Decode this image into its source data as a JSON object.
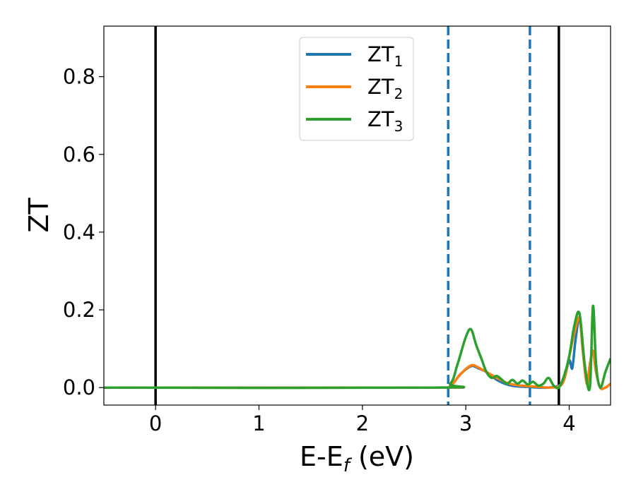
{
  "chart_data": {
    "type": "line",
    "xlabel": "E-E",
    "xlabel_sub": "f",
    "xlabel_unit": " (eV)",
    "ylabel": "ZT",
    "xlim": [
      -0.5,
      4.4
    ],
    "ylim": [
      -0.045,
      0.93
    ],
    "xticks": [
      0,
      1,
      2,
      3,
      4
    ],
    "yticks": [
      0.0,
      0.2,
      0.4,
      0.6,
      0.8
    ],
    "xtick_labels": [
      "0",
      "1",
      "2",
      "3",
      "4"
    ],
    "ytick_labels": [
      "0.0",
      "0.2",
      "0.4",
      "0.6",
      "0.8"
    ],
    "grid": false,
    "legend_position": "top-center",
    "vertical_lines": [
      {
        "x": 0.0,
        "style": "solid",
        "color": "#000000"
      },
      {
        "x": 2.83,
        "style": "dashed",
        "color": "#1f77b4"
      },
      {
        "x": 3.62,
        "style": "dashed",
        "color": "#1f77b4"
      },
      {
        "x": 3.9,
        "style": "solid",
        "color": "#000000"
      }
    ],
    "series": [
      {
        "name": "ZT",
        "name_sub": "1",
        "color": "#1f77b4",
        "x": [
          -0.5,
          2.7,
          2.85,
          2.95,
          3.05,
          3.12,
          3.2,
          3.3,
          3.4,
          3.5,
          3.6,
          3.7,
          3.8,
          3.9,
          3.95,
          4.0,
          4.03,
          4.06,
          4.1,
          4.13,
          4.17,
          4.2,
          4.23,
          4.26,
          4.3,
          4.35,
          4.4
        ],
        "y": [
          0.0,
          0.0,
          0.005,
          0.035,
          0.055,
          0.05,
          0.04,
          0.02,
          0.008,
          0.003,
          0.002,
          0.0,
          0.0,
          0.005,
          0.02,
          0.07,
          0.05,
          0.12,
          0.18,
          0.1,
          0.01,
          0.06,
          0.095,
          0.04,
          0.0,
          0.0,
          0.01
        ]
      },
      {
        "name": "ZT",
        "name_sub": "2",
        "color": "#ff7f0e",
        "x": [
          -0.5,
          2.7,
          2.85,
          2.95,
          3.05,
          3.12,
          3.2,
          3.3,
          3.4,
          3.5,
          3.6,
          3.7,
          3.8,
          3.9,
          3.95,
          4.0,
          4.05,
          4.1,
          4.13,
          4.17,
          4.2,
          4.23,
          4.26,
          4.3,
          4.35,
          4.4
        ],
        "y": [
          0.0,
          0.0,
          0.005,
          0.035,
          0.057,
          0.052,
          0.04,
          0.025,
          0.012,
          0.006,
          0.004,
          0.002,
          0.0,
          0.003,
          0.02,
          0.08,
          0.14,
          0.18,
          0.1,
          0.01,
          0.06,
          0.095,
          0.04,
          0.0,
          0.0,
          0.01
        ]
      },
      {
        "name": "ZT",
        "name_sub": "3",
        "color": "#2ca02c",
        "x": [
          -0.5,
          2.7,
          2.85,
          2.92,
          3.0,
          3.05,
          3.1,
          3.15,
          3.2,
          3.25,
          3.3,
          3.35,
          3.4,
          3.45,
          3.5,
          3.55,
          3.6,
          3.65,
          3.7,
          3.75,
          3.8,
          3.85,
          3.9,
          3.95,
          4.0,
          4.05,
          4.1,
          4.15,
          4.2,
          4.23,
          4.26,
          4.3,
          4.35,
          4.4
        ],
        "y": [
          0.0,
          0.0,
          0.01,
          0.06,
          0.13,
          0.15,
          0.11,
          0.075,
          0.04,
          0.025,
          0.03,
          0.02,
          0.01,
          0.02,
          0.01,
          0.018,
          0.008,
          0.015,
          0.005,
          0.01,
          0.025,
          0.005,
          0.0,
          0.03,
          0.08,
          0.16,
          0.19,
          0.06,
          0.0,
          0.21,
          0.06,
          0.0,
          0.04,
          0.075
        ]
      }
    ]
  }
}
